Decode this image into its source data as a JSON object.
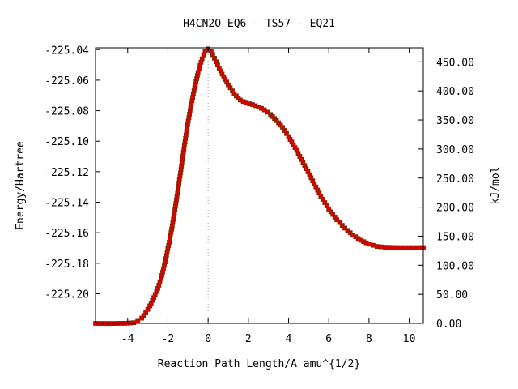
{
  "chart_data": {
    "type": "line",
    "title": "H4CN2O   EQ6 - TS57 - EQ21",
    "xlabel": "Reaction Path Length/A amu^{1/2}",
    "ylabel": "Energy/Hartree",
    "y2label": "kJ/mol",
    "xlim": [
      -5.6,
      10.7
    ],
    "ylim": [
      -225.2194,
      -225.0388
    ],
    "y2lim": [
      0.0,
      474.2
    ],
    "xticks": [
      -4,
      -2,
      0,
      2,
      4,
      6,
      8,
      10
    ],
    "yticks": [
      -225.2,
      -225.18,
      -225.16,
      -225.14,
      -225.12,
      -225.1,
      -225.08,
      -225.06,
      -225.04
    ],
    "y2ticks": [
      0,
      50,
      100,
      150,
      200,
      250,
      300,
      350,
      400,
      450
    ],
    "ts_marker_x": 0,
    "grid": false,
    "legend": "none",
    "colors": {
      "line": "#00a000",
      "marker": "#dd0000",
      "marker_edge": "#7a2a00",
      "ts_line": "#999999"
    },
    "series": [
      {
        "x": [
          -5.6,
          -5.0,
          -4.5,
          -4.0,
          -3.7,
          -3.5,
          -3.3,
          -3.1,
          -2.9,
          -2.7,
          -2.5,
          -2.3,
          -2.1,
          -1.9,
          -1.7,
          -1.5,
          -1.3,
          -1.1,
          -0.9,
          -0.7,
          -0.5,
          -0.3,
          -0.15,
          0.0,
          0.15,
          0.4,
          0.7,
          1.0,
          1.3,
          1.6,
          1.9,
          2.2,
          2.5,
          2.8,
          3.1,
          3.4,
          3.7,
          4.0,
          4.4,
          4.8,
          5.2,
          5.6,
          6.0,
          6.4,
          6.8,
          7.2,
          7.6,
          8.0,
          8.4,
          8.8,
          9.2,
          9.6,
          10.0,
          10.4,
          10.7
        ],
        "values": [
          -225.2194,
          -225.2195,
          -225.2194,
          -225.2193,
          -225.219,
          -225.218,
          -225.216,
          -225.2125,
          -225.208,
          -225.2025,
          -225.1965,
          -225.188,
          -225.177,
          -225.164,
          -225.149,
          -225.132,
          -225.114,
          -225.096,
          -225.08,
          -225.067,
          -225.055,
          -225.046,
          -225.041,
          -225.0395,
          -225.041,
          -225.048,
          -225.056,
          -225.063,
          -225.069,
          -225.073,
          -225.075,
          -225.076,
          -225.0775,
          -225.0795,
          -225.0825,
          -225.0865,
          -225.091,
          -225.097,
          -225.106,
          -225.116,
          -225.126,
          -225.136,
          -225.1445,
          -225.1515,
          -225.157,
          -225.1615,
          -225.165,
          -225.1675,
          -225.169,
          -225.1695,
          -225.1697,
          -225.1698,
          -225.1698,
          -225.1698,
          -225.1698
        ]
      }
    ]
  }
}
